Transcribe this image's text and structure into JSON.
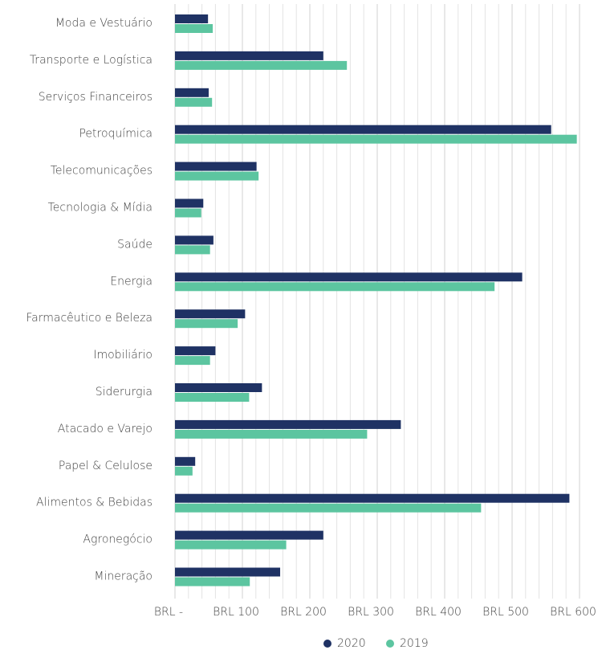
{
  "chart_data": {
    "type": "hbar",
    "categories": [
      "Moda e Vestuário",
      "Transporte e Logística",
      "Serviços Financeiros",
      "Petroquímica",
      "Telecomunicações",
      "Tecnologia & Mídia",
      "Saúde",
      "Energia",
      "Farmacêutico e Beleza",
      "Imobiliário",
      "Siderurgia",
      "Atacado e Varejo",
      "Papel & Celulose",
      "Alimentos & Bebidas",
      "Agronegócio",
      "Mineração"
    ],
    "series": [
      {
        "name": "2020",
        "color": "#1f3264",
        "values": [
          49,
          220,
          50,
          558,
          121,
          42,
          57,
          515,
          104,
          60,
          129,
          335,
          30,
          585,
          220,
          156
        ]
      },
      {
        "name": "2019",
        "color": "#5cc5a0",
        "values": [
          56,
          255,
          55,
          596,
          124,
          39,
          52,
          474,
          93,
          52,
          110,
          285,
          26,
          454,
          165,
          111
        ]
      }
    ],
    "xlim": [
      0,
      600
    ],
    "xticks": [
      {
        "value": 0,
        "label": "BRL -"
      },
      {
        "value": 100,
        "label": "BRL 100"
      },
      {
        "value": 200,
        "label": "BRL 200"
      },
      {
        "value": 300,
        "label": "BRL 300"
      },
      {
        "value": 400,
        "label": "BRL 400"
      },
      {
        "value": 500,
        "label": "BRL 500"
      },
      {
        "value": 600,
        "label": "BRL 600"
      }
    ],
    "minor_xticks": [
      20,
      40,
      60,
      80,
      120,
      140,
      160,
      180,
      220,
      240,
      260,
      280,
      320,
      340,
      360,
      380,
      420,
      440,
      460,
      480,
      520,
      540,
      560,
      580
    ],
    "grid": true,
    "legend": "bottom"
  }
}
